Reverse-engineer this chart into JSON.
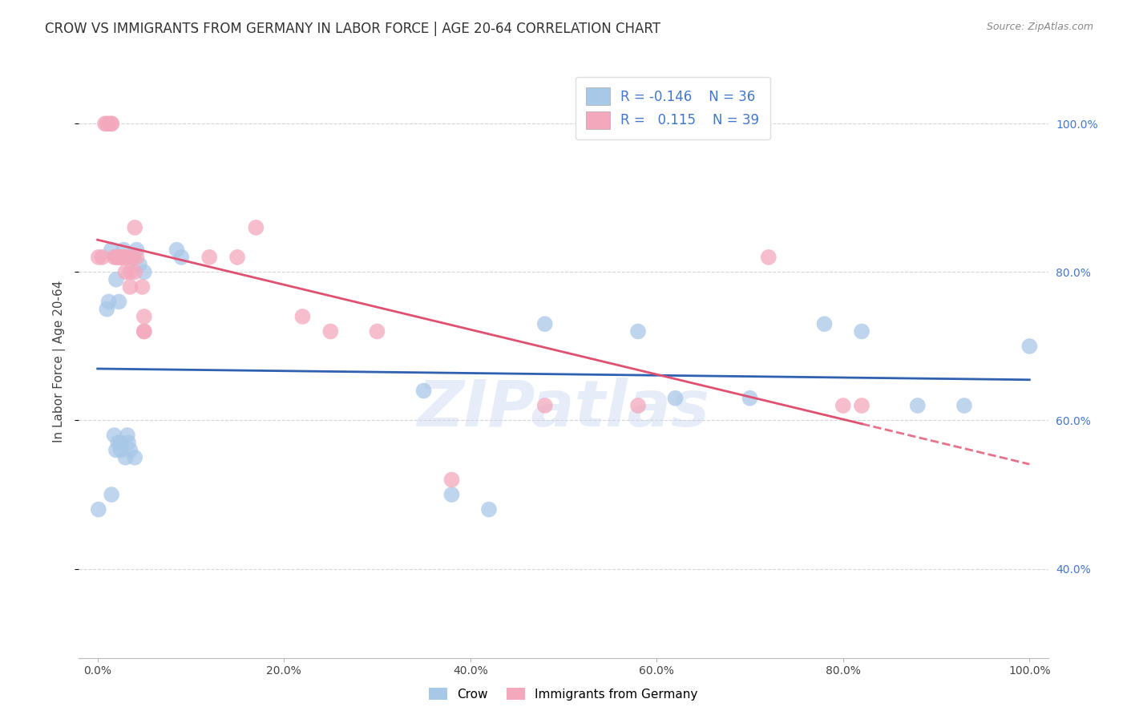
{
  "title": "CROW VS IMMIGRANTS FROM GERMANY IN LABOR FORCE | AGE 20-64 CORRELATION CHART",
  "source": "Source: ZipAtlas.com",
  "ylabel": "In Labor Force | Age 20-64",
  "watermark": "ZIPatlas",
  "crow_R": -0.146,
  "crow_N": 36,
  "germany_R": 0.115,
  "germany_N": 39,
  "crow_color": "#a8c8e8",
  "germany_color": "#f4a8bc",
  "crow_line_color": "#3060b0",
  "germany_line_color": "#e05070",
  "background_color": "#ffffff",
  "grid_color": "#cccccc",
  "crow_x": [
    0.001,
    0.01,
    0.012,
    0.015,
    0.015,
    0.018,
    0.02,
    0.02,
    0.022,
    0.023,
    0.025,
    0.025,
    0.028,
    0.03,
    0.032,
    0.033,
    0.035,
    0.038,
    0.04,
    0.042,
    0.045,
    0.05,
    0.085,
    0.09,
    0.35,
    0.38,
    0.42,
    0.48,
    0.58,
    0.62,
    0.7,
    0.78,
    0.82,
    0.88,
    0.93,
    1.0
  ],
  "crow_y": [
    0.48,
    0.75,
    0.76,
    0.5,
    0.83,
    0.58,
    0.56,
    0.79,
    0.57,
    0.76,
    0.57,
    0.56,
    0.83,
    0.55,
    0.58,
    0.57,
    0.56,
    0.82,
    0.55,
    0.83,
    0.81,
    0.8,
    0.83,
    0.82,
    0.64,
    0.5,
    0.48,
    0.73,
    0.72,
    0.63,
    0.63,
    0.73,
    0.72,
    0.62,
    0.62,
    0.7
  ],
  "germany_x": [
    0.001,
    0.005,
    0.008,
    0.01,
    0.012,
    0.015,
    0.015,
    0.018,
    0.02,
    0.022,
    0.023,
    0.025,
    0.025,
    0.028,
    0.03,
    0.03,
    0.032,
    0.035,
    0.035,
    0.038,
    0.04,
    0.04,
    0.042,
    0.048,
    0.05,
    0.05,
    0.05,
    0.12,
    0.15,
    0.17,
    0.22,
    0.25,
    0.3,
    0.38,
    0.48,
    0.58,
    0.72,
    0.8,
    0.82
  ],
  "germany_y": [
    0.82,
    0.82,
    1.0,
    1.0,
    1.0,
    1.0,
    1.0,
    0.82,
    0.82,
    0.82,
    0.82,
    0.82,
    0.82,
    0.82,
    0.82,
    0.8,
    0.82,
    0.78,
    0.8,
    0.82,
    0.86,
    0.8,
    0.82,
    0.78,
    0.74,
    0.72,
    0.72,
    0.82,
    0.82,
    0.86,
    0.74,
    0.72,
    0.72,
    0.52,
    0.62,
    0.62,
    0.82,
    0.62,
    0.62
  ],
  "xlim": [
    -0.02,
    1.02
  ],
  "ylim": [
    0.28,
    1.08
  ],
  "xtick_labels": [
    "0.0%",
    "20.0%",
    "40.0%",
    "60.0%",
    "80.0%",
    "100.0%"
  ],
  "xtick_vals": [
    0.0,
    0.2,
    0.4,
    0.6,
    0.8,
    1.0
  ],
  "ytick_labels": [
    "40.0%",
    "60.0%",
    "80.0%",
    "100.0%"
  ],
  "ytick_vals": [
    0.4,
    0.6,
    0.8,
    1.0
  ],
  "legend_labels": [
    "Crow",
    "Immigrants from Germany"
  ],
  "title_fontsize": 12,
  "axis_label_fontsize": 11,
  "tick_fontsize": 10
}
